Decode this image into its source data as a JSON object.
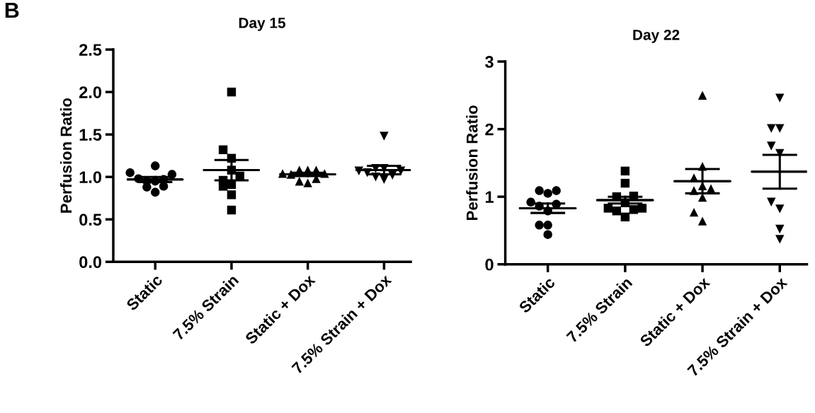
{
  "chart_data": [
    {
      "type": "scatter",
      "title": "Day 15",
      "ylabel": "Perfusion Ratio",
      "annotations": [
        "B"
      ],
      "categories": [
        "Static",
        "7.5% Strain",
        "Static + Dox",
        "7.5% Strain + Dox"
      ],
      "ylim": [
        0,
        2.5
      ],
      "yticks": [
        {
          "value": 0,
          "label": "0.0"
        },
        {
          "value": 0.5,
          "label": "0.5"
        },
        {
          "value": 1,
          "label": "1.0"
        },
        {
          "value": 1.5,
          "label": "1.5"
        },
        {
          "value": 2,
          "label": "2.0"
        },
        {
          "value": 2.5,
          "label": "2.5"
        }
      ],
      "grid": false,
      "legend": false,
      "series": [
        {
          "color": "#000000",
          "marker": "circle",
          "x": [
            "Static",
            "Static",
            "Static",
            "Static",
            "Static",
            "Static",
            "Static",
            "Static",
            "Static",
            "Static"
          ],
          "values": [
            1.05,
            1.13,
            0.95,
            0.97,
            0.98,
            1.03,
            0.95,
            0.89,
            0.82,
            0.88
          ]
        },
        {
          "color": "#000000",
          "marker": "square",
          "x": [
            "7.5% Strain",
            "7.5% Strain",
            "7.5% Strain",
            "7.5% Strain",
            "7.5% Strain",
            "7.5% Strain",
            "7.5% Strain",
            "7.5% Strain",
            "7.5% Strain",
            "7.5% Strain"
          ],
          "values": [
            2.0,
            1.32,
            1.22,
            1.08,
            1.01,
            0.96,
            0.91,
            0.89,
            0.79,
            0.61
          ]
        },
        {
          "color": "#000000",
          "marker": "triangle",
          "x": [
            "Static + Dox",
            "Static + Dox",
            "Static + Dox",
            "Static + Dox",
            "Static + Dox",
            "Static + Dox",
            "Static + Dox",
            "Static + Dox",
            "Static + Dox"
          ],
          "values": [
            1.04,
            1.08,
            1.08,
            1.08,
            1.04,
            1.03,
            0.98,
            0.93,
            0.95
          ]
        },
        {
          "color": "#000000",
          "marker": "triangle_down",
          "x": [
            "7.5% Strain + Dox",
            "7.5% Strain + Dox",
            "7.5% Strain + Dox",
            "7.5% Strain + Dox",
            "7.5% Strain + Dox",
            "7.5% Strain + Dox",
            "7.5% Strain + Dox",
            "7.5% Strain + Dox",
            "7.5% Strain + Dox"
          ],
          "values": [
            1.48,
            1.1,
            1.1,
            1.07,
            1.07,
            1.02,
            1.0,
            0.97,
            1.05
          ]
        },
        {
          "type": "box",
          "color": "#000000",
          "boxes": [
            {
              "low": 0.94,
              "q1": 0.97,
              "median": 0.97,
              "q3": 0.97,
              "high": 1.0
            },
            {
              "low": 0.96,
              "q1": 1.08,
              "median": 1.08,
              "q3": 1.08,
              "high": 1.2
            },
            {
              "low": 1.01,
              "q1": 1.03,
              "median": 1.03,
              "q3": 1.03,
              "high": 1.05
            },
            {
              "low": 1.03,
              "q1": 1.08,
              "median": 1.08,
              "q3": 1.08,
              "high": 1.13
            }
          ]
        }
      ]
    },
    {
      "type": "scatter",
      "title": "Day 22",
      "ylabel": "Perfusion Ratio",
      "categories": [
        "Static",
        "7.5% Strain",
        "Static + Dox",
        "7.5% Strain + Dox"
      ],
      "ylim": [
        0,
        3
      ],
      "yticks": [
        0,
        1,
        2,
        3
      ],
      "grid": false,
      "legend": false,
      "series": [
        {
          "color": "#000000",
          "marker": "circle",
          "x": [
            "Static",
            "Static",
            "Static",
            "Static",
            "Static",
            "Static",
            "Static",
            "Static",
            "Static",
            "Static"
          ],
          "values": [
            1.09,
            1.05,
            1.09,
            0.92,
            0.86,
            0.79,
            0.89,
            0.58,
            0.58,
            0.44
          ]
        },
        {
          "color": "#000000",
          "marker": "square",
          "x": [
            "7.5% Strain",
            "7.5% Strain",
            "7.5% Strain",
            "7.5% Strain",
            "7.5% Strain",
            "7.5% Strain",
            "7.5% Strain",
            "7.5% Strain",
            "7.5% Strain",
            "7.5% Strain"
          ],
          "values": [
            1.38,
            1.2,
            1.0,
            1.01,
            0.91,
            0.83,
            0.81,
            0.79,
            0.83,
            0.7
          ]
        },
        {
          "color": "#000000",
          "marker": "triangle",
          "x": [
            "Static + Dox",
            "Static + Dox",
            "Static + Dox",
            "Static + Dox",
            "Static + Dox",
            "Static + Dox",
            "Static + Dox",
            "Static + Dox",
            "Static + Dox"
          ],
          "values": [
            2.5,
            1.45,
            1.28,
            1.16,
            1.09,
            1.12,
            0.99,
            0.77,
            0.64
          ]
        },
        {
          "color": "#000000",
          "marker": "triangle_down",
          "x": [
            "7.5% Strain + Dox",
            "7.5% Strain + Dox",
            "7.5% Strain + Dox",
            "7.5% Strain + Dox",
            "7.5% Strain + Dox",
            "7.5% Strain + Dox",
            "7.5% Strain + Dox",
            "7.5% Strain + Dox",
            "7.5% Strain + Dox"
          ],
          "values": [
            2.46,
            2.01,
            2.01,
            1.75,
            1.64,
            0.92,
            0.82,
            0.52,
            0.37
          ]
        },
        {
          "type": "box",
          "color": "#000000",
          "boxes": [
            {
              "low": 0.76,
              "q1": 0.83,
              "median": 0.83,
              "q3": 0.83,
              "high": 0.9
            },
            {
              "low": 0.9,
              "q1": 0.95,
              "median": 0.95,
              "q3": 0.95,
              "high": 1.0
            },
            {
              "low": 1.05,
              "q1": 1.23,
              "median": 1.23,
              "q3": 1.23,
              "high": 1.41
            },
            {
              "low": 1.12,
              "q1": 1.37,
              "median": 1.37,
              "q3": 1.37,
              "high": 1.62
            }
          ]
        }
      ]
    }
  ]
}
